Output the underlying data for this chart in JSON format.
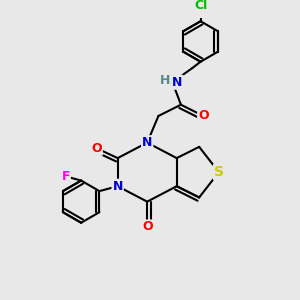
{
  "background_color": "#e8e8e8",
  "bond_color": "#000000",
  "atom_colors": {
    "N": "#0000cc",
    "O": "#ff0000",
    "S": "#cccc00",
    "F": "#ff00ff",
    "Cl": "#00bb00",
    "H": "#558888",
    "C": "#000000"
  },
  "line_width": 1.5,
  "font_size": 9
}
